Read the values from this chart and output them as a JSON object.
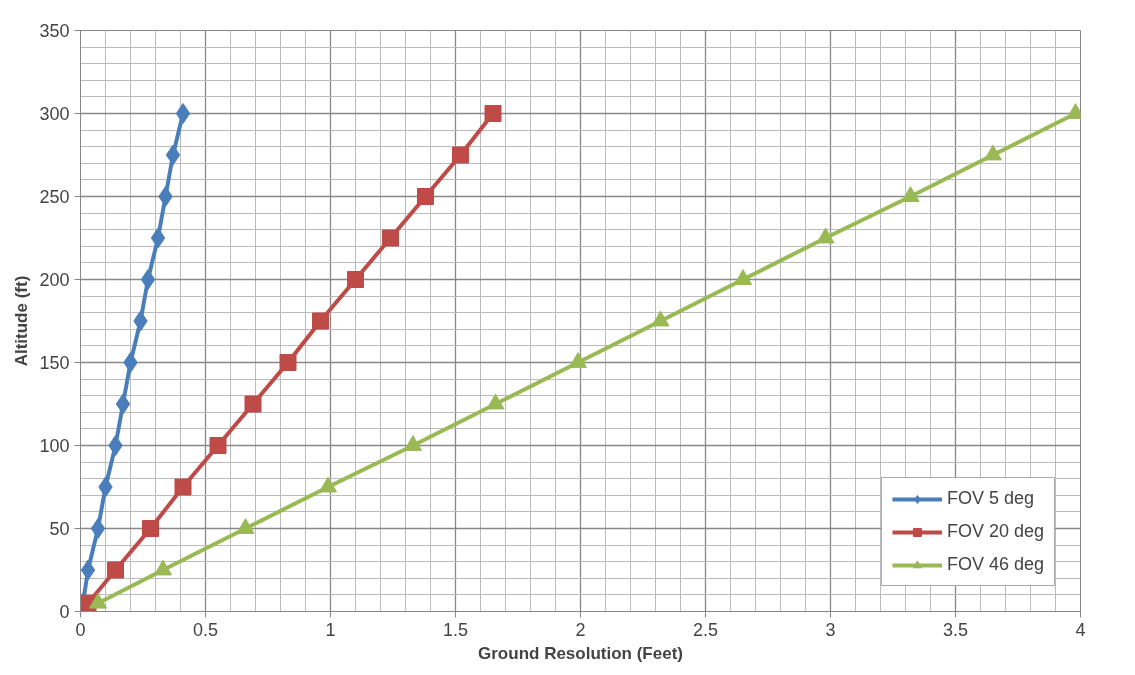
{
  "chart_data": {
    "type": "line",
    "xlabel": "Ground Resolution (Feet)",
    "ylabel": "Altitude (ft)",
    "xlim": [
      0,
      4
    ],
    "xticks": [
      0,
      0.5,
      1,
      1.5,
      2,
      2.5,
      3,
      3.5,
      4
    ],
    "ylim": [
      0,
      350
    ],
    "yticks": [
      0,
      50,
      100,
      150,
      200,
      250,
      300,
      350
    ],
    "grid": true,
    "legend": "bottom right",
    "line_style": "solid",
    "series": [
      {
        "name": "FOV 5 deg",
        "color": "#4a7ebb",
        "marker": "diamond",
        "x": [
          0.01,
          0.03,
          0.07,
          0.1,
          0.14,
          0.17,
          0.2,
          0.24,
          0.27,
          0.31,
          0.34,
          0.37,
          0.41
        ],
        "values": [
          5,
          25,
          50,
          75,
          100,
          125,
          150,
          175,
          200,
          225,
          250,
          275,
          300
        ]
      },
      {
        "name": "FOV 20 deg",
        "color": "#be4b48",
        "marker": "square",
        "x": [
          0.03,
          0.14,
          0.28,
          0.41,
          0.55,
          0.69,
          0.83,
          0.96,
          1.1,
          1.24,
          1.38,
          1.52,
          1.65
        ],
        "values": [
          5,
          25,
          50,
          75,
          100,
          125,
          150,
          175,
          200,
          225,
          250,
          275,
          300
        ]
      },
      {
        "name": "FOV 46 deg",
        "color": "#98b954",
        "marker": "triangle",
        "x": [
          0.07,
          0.33,
          0.66,
          0.99,
          1.33,
          1.66,
          1.99,
          2.32,
          2.65,
          2.98,
          3.32,
          3.65,
          3.98
        ],
        "values": [
          5,
          25,
          50,
          75,
          100,
          125,
          150,
          175,
          200,
          225,
          250,
          275,
          300
        ]
      }
    ]
  }
}
